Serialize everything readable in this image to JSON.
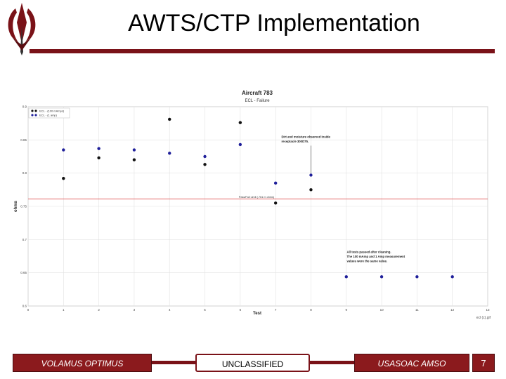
{
  "header": {
    "title": "AWTS/CTP Implementation"
  },
  "footer": {
    "left_text": "VOLAMUS OPTIMUS",
    "center_text": "UNCLASSIFIED",
    "right_text": "USASOAC AMSO",
    "page_number": "7"
  },
  "colors": {
    "accent": "#8b1a1d",
    "series_100mA": "#111111",
    "series_1A": "#1f1f9a",
    "limit_line": "#e05050"
  },
  "chart_data": {
    "type": "scatter",
    "title": "Aircraft 783",
    "subtitle": "ECL - Failure",
    "xlabel": "Test",
    "ylabel": "ohms",
    "xlim": [
      0,
      13
    ],
    "ylim": [
      0.6,
      0.9
    ],
    "x_ticks": [
      "0",
      "1",
      "2",
      "3",
      "4",
      "5",
      "6",
      "7",
      "8",
      "9",
      "10",
      "11",
      "12",
      "13"
    ],
    "y_ticks": [
      "0.6",
      "0.65",
      "0.7",
      "0.75",
      "0.8",
      "0.85",
      "0.9"
    ],
    "grid": true,
    "legend_position": "top-left",
    "series": [
      {
        "name": "ECL - (100 mAmps)",
        "color": "#111111",
        "points": [
          [
            1,
            0.792
          ],
          [
            2,
            0.823
          ],
          [
            3,
            0.82
          ],
          [
            4,
            0.881
          ],
          [
            5,
            0.813
          ],
          [
            6,
            0.876
          ],
          [
            7,
            0.755
          ],
          [
            8,
            0.775
          ]
        ]
      },
      {
        "name": "ECL - (1 amp)",
        "color": "#1f1f9a",
        "points": [
          [
            1,
            0.835
          ],
          [
            2,
            0.837
          ],
          [
            3,
            0.835
          ],
          [
            4,
            0.83
          ],
          [
            5,
            0.825
          ],
          [
            6,
            0.843
          ],
          [
            7,
            0.785
          ],
          [
            8,
            0.797
          ],
          [
            9,
            0.644
          ],
          [
            10,
            0.644
          ],
          [
            11,
            0.644
          ],
          [
            12,
            0.644
          ]
        ]
      }
    ],
    "limit_line": {
      "y": 0.761,
      "label": "Pass/Fail Limit (.761 m ohms)"
    },
    "annotations": [
      {
        "text": [
          "Dirt and moisture observed inside",
          "receptacle 300D75."
        ],
        "x": 8,
        "y": 0.853,
        "arrow_to_y": 0.8
      },
      {
        "text": [
          "All tests passed after cleaning.",
          "The 100 mAmp and 1 Amp measurement",
          "values were the same value."
        ],
        "x": 9.85,
        "y": 0.68
      }
    ],
    "source_label": "ecl (c).gif"
  }
}
